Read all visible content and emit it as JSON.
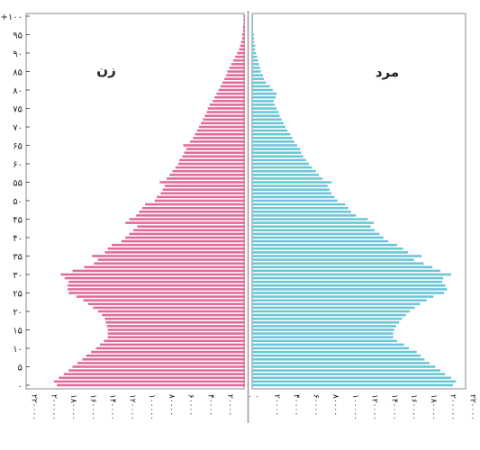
{
  "chart_data": {
    "type": "bar",
    "subtype": "population-pyramid",
    "left_label": "زن",
    "right_label": "مرد",
    "y_ticks": [
      "۰",
      "۵",
      "۱۰",
      "۱۵",
      "۲۰",
      "۲۵",
      "۳۰",
      "۳۵",
      "۴۰",
      "۴۵",
      "۵۰",
      "۵۵",
      "۶۰",
      "۶۵",
      "۷۰",
      "۷۵",
      "۸۰",
      "۸۵",
      "۹۰",
      "۹۵",
      "+۱۰۰"
    ],
    "y_tick_values": [
      0,
      5,
      10,
      15,
      20,
      25,
      30,
      35,
      40,
      45,
      50,
      55,
      60,
      65,
      70,
      75,
      80,
      85,
      90,
      95,
      100
    ],
    "x_ticks": [
      "۰",
      "۲۰۰۰۰",
      "۴۰۰۰۰",
      "۶۰۰۰۰",
      "۸۰۰۰۰",
      "۱۰۰۰۰۰",
      "۱۲۰۰۰۰",
      "۱۴۰۰۰۰",
      "۱۶۰۰۰۰",
      "۱۸۰۰۰۰",
      "۲۰۰۰۰۰",
      "۲۲۰۰۰۰"
    ],
    "x_tick_values": [
      0,
      20000,
      40000,
      60000,
      80000,
      100000,
      120000,
      140000,
      160000,
      180000,
      200000,
      220000
    ],
    "xlim": [
      0,
      220000
    ],
    "ylim": [
      0,
      100
    ],
    "grid": false,
    "colors": {
      "female": "#e06a9a",
      "male": "#6ac6d6",
      "divider": "#999999"
    },
    "ages": [
      0,
      1,
      2,
      3,
      4,
      5,
      6,
      7,
      8,
      9,
      10,
      11,
      12,
      13,
      14,
      15,
      16,
      17,
      18,
      19,
      20,
      21,
      22,
      23,
      24,
      25,
      26,
      27,
      28,
      29,
      30,
      31,
      32,
      33,
      34,
      35,
      36,
      37,
      38,
      39,
      40,
      41,
      42,
      43,
      44,
      45,
      46,
      47,
      48,
      49,
      50,
      51,
      52,
      53,
      54,
      55,
      56,
      57,
      58,
      59,
      60,
      61,
      62,
      63,
      64,
      65,
      66,
      67,
      68,
      69,
      70,
      71,
      72,
      73,
      74,
      75,
      76,
      77,
      78,
      79,
      80,
      81,
      82,
      83,
      84,
      85,
      86,
      87,
      88,
      89,
      90,
      91,
      92,
      93,
      94,
      95,
      96,
      97,
      98,
      99,
      100
    ],
    "series": [
      {
        "name": "زن",
        "values": [
          192000,
          195000,
          190000,
          185000,
          180000,
          176000,
          171000,
          166000,
          162000,
          157000,
          152000,
          148000,
          144000,
          140000,
          140000,
          140000,
          141000,
          142000,
          143000,
          146000,
          150000,
          155000,
          160000,
          165000,
          172000,
          180000,
          181000,
          181000,
          180000,
          184000,
          188000,
          176000,
          164000,
          154000,
          150000,
          156000,
          143000,
          140000,
          136000,
          126000,
          122000,
          118000,
          114000,
          110000,
          122000,
          118000,
          111000,
          108000,
          105000,
          102000,
          92000,
          90000,
          86000,
          84000,
          82000,
          87000,
          80000,
          77000,
          74000,
          71000,
          68000,
          67000,
          64000,
          62000,
          60000,
          63000,
          56000,
          53000,
          51000,
          49000,
          47000,
          45000,
          43000,
          41000,
          39000,
          38000,
          36000,
          33000,
          31000,
          29000,
          27000,
          25000,
          23000,
          21000,
          19000,
          18000,
          16000,
          14000,
          12000,
          10000,
          8000,
          6000,
          5000,
          4000,
          3000,
          3000,
          2000,
          2000,
          1000,
          1000,
          1000
        ]
      },
      {
        "name": "مرد",
        "values": [
          205000,
          208000,
          203000,
          197000,
          192000,
          187000,
          181000,
          176000,
          172000,
          168000,
          160000,
          155000,
          148000,
          144000,
          144000,
          145000,
          147000,
          150000,
          153000,
          157000,
          161000,
          166000,
          171000,
          178000,
          185000,
          196000,
          199000,
          197000,
          194000,
          195000,
          203000,
          192000,
          184000,
          175000,
          165000,
          173000,
          159000,
          154000,
          148000,
          139000,
          134000,
          130000,
          125000,
          121000,
          124000,
          118000,
          106000,
          101000,
          98000,
          95000,
          87000,
          84000,
          81000,
          79000,
          77000,
          81000,
          72000,
          68000,
          65000,
          61000,
          58000,
          55000,
          52000,
          50000,
          49000,
          46000,
          43000,
          41000,
          39000,
          36000,
          34000,
          32000,
          30000,
          28000,
          27000,
          25000,
          23000,
          22000,
          24000,
          25000,
          21000,
          18000,
          14000,
          12000,
          11000,
          9000,
          8000,
          7000,
          6000,
          5000,
          4000,
          3000,
          3000,
          2000,
          2000,
          2000,
          1000,
          1000,
          1000,
          1000,
          1000
        ]
      }
    ]
  }
}
